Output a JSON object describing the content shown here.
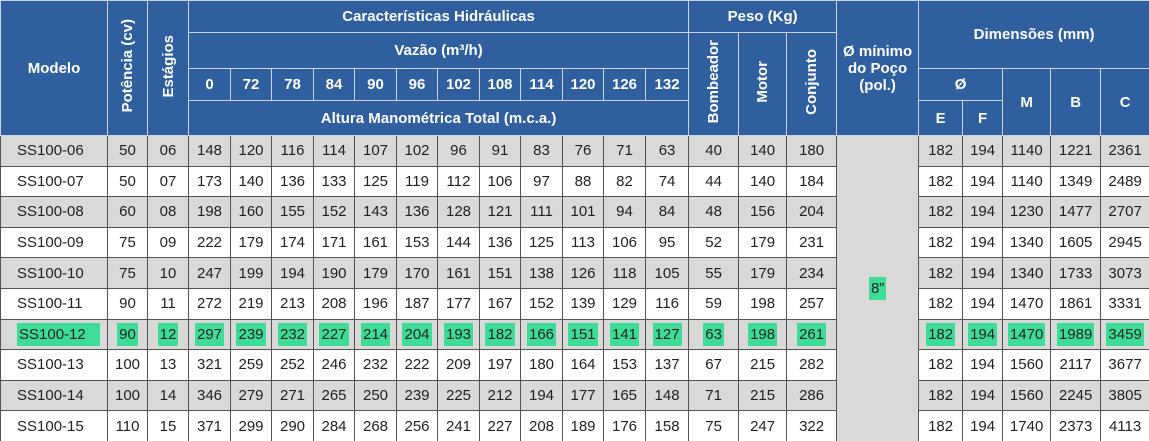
{
  "table": {
    "headers": {
      "modelo": "Modelo",
      "potencia": "Potência (cv)",
      "estagios": "Estágios",
      "hidraulicas": "Características Hidráulicas",
      "vazao": "Vazão (m³/h)",
      "flows": [
        "0",
        "72",
        "78",
        "84",
        "90",
        "96",
        "102",
        "108",
        "114",
        "120",
        "126",
        "132"
      ],
      "altura": "Altura Manométrica Total (m.c.a.)",
      "peso": "Peso (Kg)",
      "bombeador": "Bombeador",
      "motor": "Motor",
      "conjunto": "Conjunto",
      "poco": "Ø mínimo do Poço (pol.)",
      "dimensoes": "Dimensões (mm)",
      "diam": "Ø",
      "e": "E",
      "f": "F",
      "m": "M",
      "b": "B",
      "c": "C"
    },
    "poco_value": "8”",
    "highlight_row": 6,
    "rows": [
      [
        "SS100-06",
        "50",
        "06",
        "148",
        "120",
        "116",
        "114",
        "107",
        "102",
        "96",
        "91",
        "83",
        "76",
        "71",
        "63",
        "40",
        "140",
        "180",
        "182",
        "194",
        "1140",
        "1221",
        "2361"
      ],
      [
        "SS100-07",
        "50",
        "07",
        "173",
        "140",
        "136",
        "133",
        "125",
        "119",
        "112",
        "106",
        "97",
        "88",
        "82",
        "74",
        "44",
        "140",
        "184",
        "182",
        "194",
        "1140",
        "1349",
        "2489"
      ],
      [
        "SS100-08",
        "60",
        "08",
        "198",
        "160",
        "155",
        "152",
        "143",
        "136",
        "128",
        "121",
        "111",
        "101",
        "94",
        "84",
        "48",
        "156",
        "204",
        "182",
        "194",
        "1230",
        "1477",
        "2707"
      ],
      [
        "SS100-09",
        "75",
        "09",
        "222",
        "179",
        "174",
        "171",
        "161",
        "153",
        "144",
        "136",
        "125",
        "113",
        "106",
        "95",
        "52",
        "179",
        "231",
        "182",
        "194",
        "1340",
        "1605",
        "2945"
      ],
      [
        "SS100-10",
        "75",
        "10",
        "247",
        "199",
        "194",
        "190",
        "179",
        "170",
        "161",
        "151",
        "138",
        "126",
        "118",
        "105",
        "55",
        "179",
        "234",
        "182",
        "194",
        "1340",
        "1733",
        "3073"
      ],
      [
        "SS100-11",
        "90",
        "11",
        "272",
        "219",
        "213",
        "208",
        "196",
        "187",
        "177",
        "167",
        "152",
        "139",
        "129",
        "116",
        "59",
        "198",
        "257",
        "182",
        "194",
        "1470",
        "1861",
        "3331"
      ],
      [
        "SS100-12",
        "90",
        "12",
        "297",
        "239",
        "232",
        "227",
        "214",
        "204",
        "193",
        "182",
        "166",
        "151",
        "141",
        "127",
        "63",
        "198",
        "261",
        "182",
        "194",
        "1470",
        "1989",
        "3459"
      ],
      [
        "SS100-13",
        "100",
        "13",
        "321",
        "259",
        "252",
        "246",
        "232",
        "222",
        "209",
        "197",
        "180",
        "164",
        "153",
        "137",
        "67",
        "215",
        "282",
        "182",
        "194",
        "1560",
        "2117",
        "3677"
      ],
      [
        "SS100-14",
        "100",
        "14",
        "346",
        "279",
        "271",
        "265",
        "250",
        "239",
        "225",
        "212",
        "194",
        "177",
        "165",
        "148",
        "71",
        "215",
        "286",
        "182",
        "194",
        "1560",
        "2245",
        "3805"
      ],
      [
        "SS100-15",
        "110",
        "15",
        "371",
        "299",
        "290",
        "284",
        "268",
        "256",
        "241",
        "227",
        "208",
        "189",
        "176",
        "158",
        "75",
        "247",
        "322",
        "182",
        "194",
        "1740",
        "2373",
        "4113"
      ]
    ]
  }
}
